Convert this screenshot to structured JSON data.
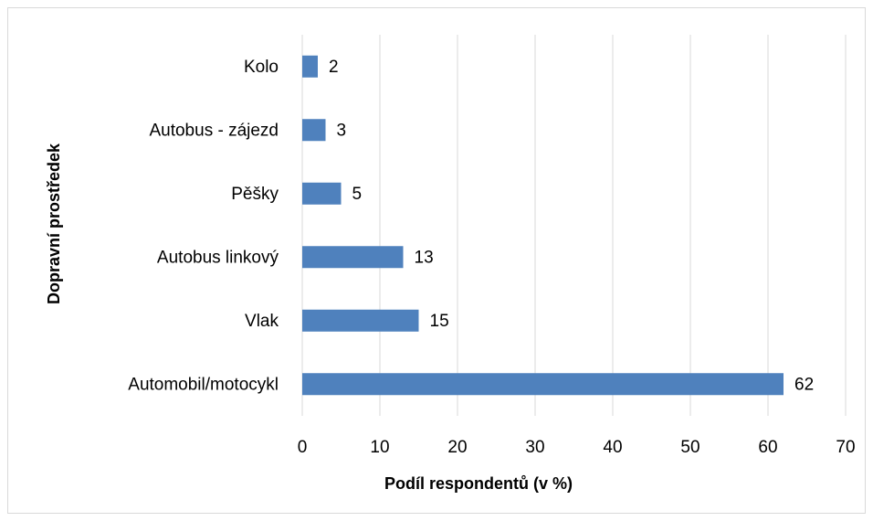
{
  "chart_data": {
    "type": "bar",
    "orientation": "horizontal",
    "xlabel": "Podíl respondentů (v %)",
    "ylabel": "Dopravní prostředek",
    "categories": [
      "Kolo",
      "Autobus - zájezd",
      "Pěšky",
      "Autobus linkový",
      "Vlak",
      "Automobil/motocykl"
    ],
    "values": [
      2,
      3,
      5,
      13,
      15,
      62
    ],
    "color": "#4f81bd",
    "xlim": [
      0,
      70
    ],
    "xticks": [
      0,
      10,
      20,
      30,
      40,
      50,
      60,
      70
    ],
    "grid": true
  }
}
